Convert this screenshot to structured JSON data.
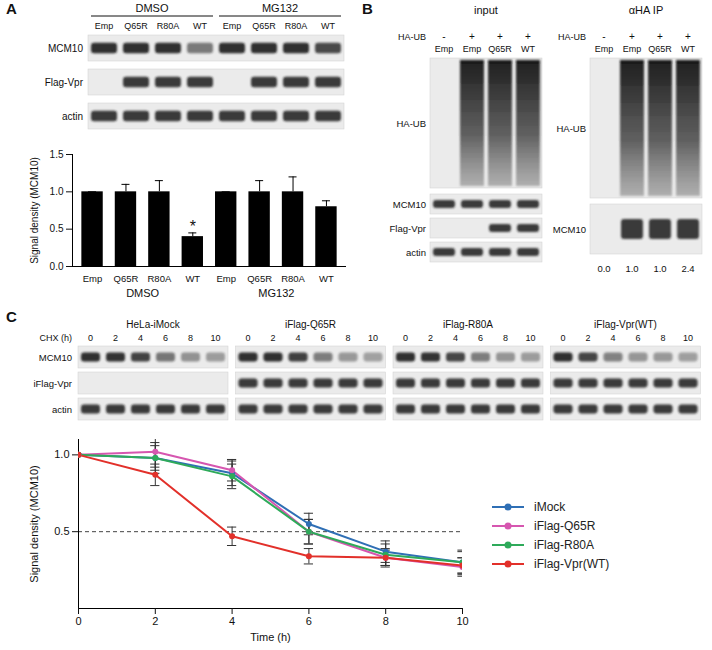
{
  "panel_letters": [
    "A",
    "B",
    "C"
  ],
  "blots": {
    "A": {
      "groups": [
        {
          "label": "DMSO",
          "lanes": [
            "Emp",
            "Q65R",
            "R80A",
            "WT"
          ]
        },
        {
          "label": "MG132",
          "lanes": [
            "Emp",
            "Q65R",
            "R80A",
            "WT"
          ]
        }
      ],
      "rows": [
        {
          "label": "MCM10",
          "present": [
            true,
            true,
            true,
            true,
            true,
            true,
            true,
            true
          ]
        },
        {
          "label": "Flag-Vpr",
          "present": [
            false,
            true,
            true,
            true,
            false,
            true,
            true,
            true
          ]
        },
        {
          "label": "actin",
          "present": [
            true,
            true,
            true,
            true,
            true,
            true,
            true,
            true
          ]
        }
      ]
    },
    "B": {
      "treatment": {
        "label": "HA-UB",
        "marks": [
          "-",
          "+",
          "+",
          "+"
        ]
      },
      "lanes": [
        "Emp",
        "Emp",
        "Q65R",
        "WT"
      ],
      "input": {
        "title": "input",
        "rows": [
          {
            "label": "HA-UB",
            "present": [
              false,
              true,
              true,
              true
            ]
          },
          {
            "label": "MCM10",
            "present": [
              true,
              true,
              true,
              true
            ]
          },
          {
            "label": "Flag-Vpr",
            "present": [
              false,
              false,
              true,
              true
            ]
          },
          {
            "label": "actin",
            "present": [
              true,
              true,
              true,
              true
            ]
          }
        ]
      },
      "ip": {
        "title": "αHA IP",
        "rows": [
          {
            "label": "HA-UB",
            "present": [
              false,
              true,
              true,
              true
            ]
          },
          {
            "label": "MCM10",
            "present": [
              false,
              true,
              true,
              true
            ]
          }
        ],
        "quantification": [
          "0.0",
          "1.0",
          "1.0",
          "2.4"
        ]
      }
    },
    "C": {
      "time_label": "CHX (h)",
      "times": [
        0,
        2,
        4,
        6,
        8,
        10
      ],
      "groups": [
        "HeLa-iMock",
        "iFlag-Q65R",
        "iFlag-R80A",
        "iFlag-Vpr(WT)"
      ],
      "rows": [
        {
          "label": "MCM10",
          "present": [
            true,
            true,
            true,
            true
          ]
        },
        {
          "label": "iFlag-Vpr",
          "present": [
            false,
            true,
            true,
            true
          ]
        },
        {
          "label": "actin",
          "present": [
            true,
            true,
            true,
            true
          ]
        }
      ]
    }
  },
  "chart_data": [
    {
      "type": "bar",
      "categories": [
        "Emp",
        "Q65R",
        "R80A",
        "WT",
        "Emp",
        "Q65R",
        "R80A",
        "WT"
      ],
      "groups": [
        "DMSO",
        "DMSO",
        "DMSO",
        "DMSO",
        "MG132",
        "MG132",
        "MG132",
        "MG132"
      ],
      "values": [
        1,
        1,
        1,
        0.4,
        1,
        1,
        1,
        0.8
      ],
      "errors": [
        0,
        0.1,
        0.15,
        0.05,
        0,
        0.15,
        0.2,
        0.08
      ],
      "color": "#000000",
      "ylabel": "Signal density (MCM10)",
      "ylim": [
        0,
        1.5
      ],
      "yticks": [
        {
          "value": 0,
          "label": "0.0"
        },
        0.5,
        {
          "value": 1,
          "label": "1.0"
        },
        1.5
      ],
      "annotations": [
        {
          "text": "*",
          "index": 3
        }
      ]
    },
    {
      "type": "line",
      "x": [
        0,
        2,
        4,
        6,
        8,
        10
      ],
      "xlabel": "Time (h)",
      "ylabel": "Signal density (MCM10)",
      "xlim": [
        0,
        10
      ],
      "xticks": [
        0,
        2,
        4,
        6,
        8,
        10
      ],
      "ylim": [
        0,
        1.1
      ],
      "yticks": [
        0.5,
        {
          "value": 1,
          "label": "1.0"
        }
      ],
      "reference_line": 0.5,
      "marker": "circle",
      "legend": "right",
      "series": [
        {
          "name": "iMock",
          "color": "#2f6fb5",
          "values": [
            1,
            0.98,
            0.88,
            0.55,
            0.37,
            0.3
          ],
          "errors": [
            0,
            0.1,
            0.08,
            0.07,
            0.07,
            0.08
          ]
        },
        {
          "name": "iFlag-Q65R",
          "color": "#d656b0",
          "values": [
            1,
            1.02,
            0.9,
            0.5,
            0.33,
            0.27
          ],
          "errors": [
            0,
            0.1,
            0.07,
            0.08,
            0.06,
            0.06
          ]
        },
        {
          "name": "iFlag-R80A",
          "color": "#2eaa5a",
          "values": [
            1,
            0.98,
            0.86,
            0.5,
            0.35,
            0.3
          ],
          "errors": [
            0,
            0.08,
            0.08,
            0.08,
            0.07,
            0.07
          ]
        },
        {
          "name": "iFlag-Vpr(WT)",
          "color": "#e2302a",
          "values": [
            1,
            0.87,
            0.47,
            0.34,
            0.33,
            0.28
          ],
          "errors": [
            0,
            0.07,
            0.06,
            0.05,
            0.05,
            0.05
          ]
        }
      ]
    }
  ]
}
